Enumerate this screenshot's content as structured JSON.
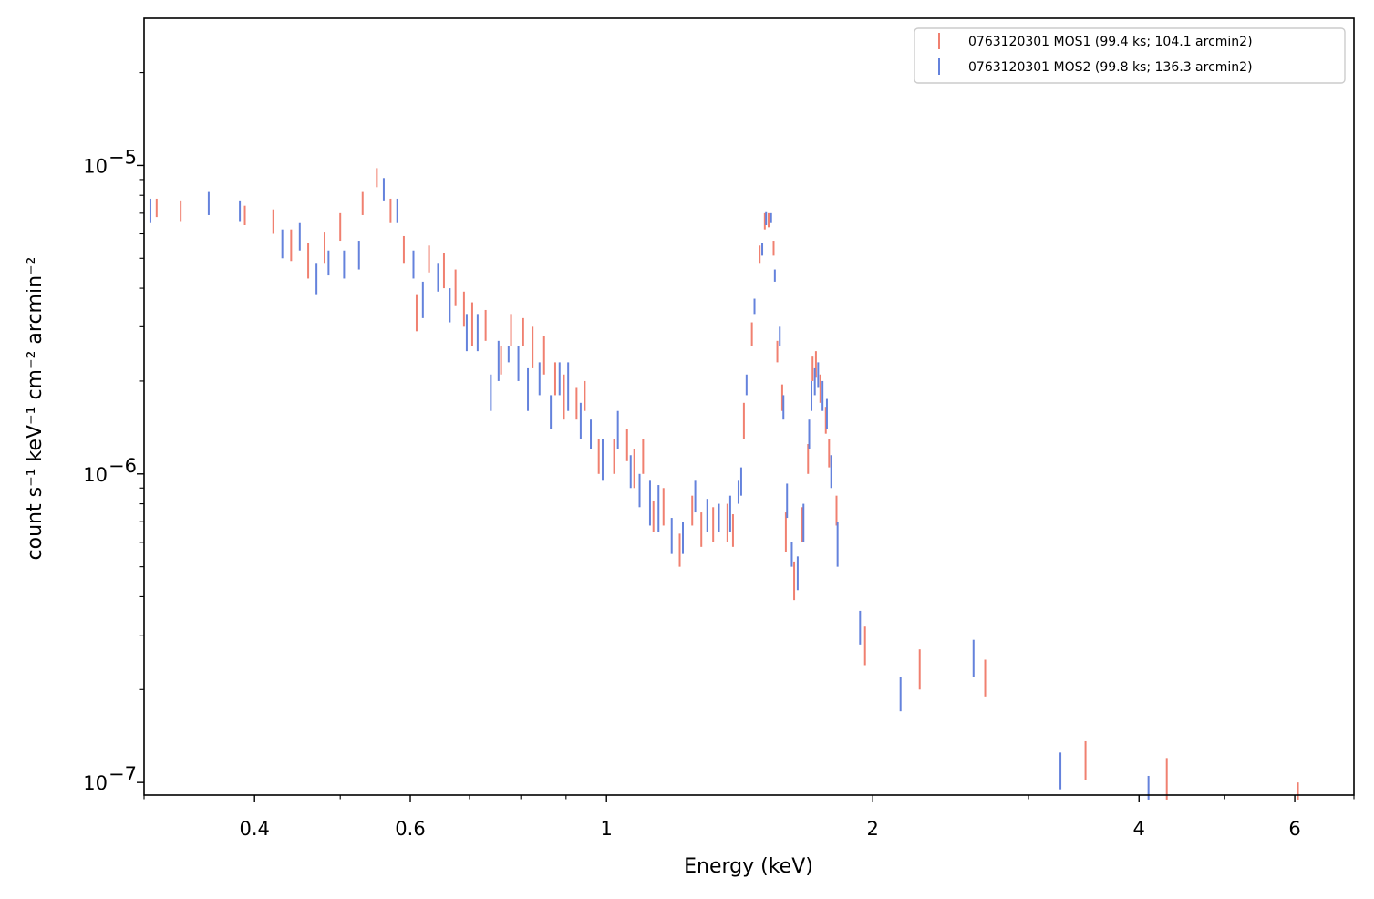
{
  "chart_data": {
    "type": "scatter",
    "title": "",
    "xlabel": "Energy (keV)",
    "ylabel": "count s⁻¹ keV⁻¹ cm⁻² arcmin⁻²",
    "x_scale": "log",
    "y_scale": "log",
    "xlim": [
      0.3,
      7.0
    ],
    "ylim": [
      9.1e-08,
      3e-05
    ],
    "x_ticks": [
      {
        "value": 0.4,
        "label": "0.4"
      },
      {
        "value": 0.6,
        "label": "0.6"
      },
      {
        "value": 1,
        "label": "1"
      },
      {
        "value": 2,
        "label": "2"
      },
      {
        "value": 4,
        "label": "4"
      },
      {
        "value": 6,
        "label": "6"
      }
    ],
    "y_ticks": [
      {
        "value": 1e-05,
        "base": "10",
        "exp": "−5"
      },
      {
        "value": 1e-06,
        "base": "10",
        "exp": "−6"
      },
      {
        "value": 1e-07,
        "base": "10",
        "exp": "−7"
      }
    ],
    "legend_position": "top-right",
    "grid": false,
    "series": [
      {
        "name": "0763120301 MOS1 (99.4 ks; 104.1 arcmin2)",
        "color": "#f08070",
        "points": [
          [
            0.31,
            6.8e-06,
            7.8e-06
          ],
          [
            0.33,
            6.6e-06,
            7.7e-06
          ],
          [
            0.39,
            6.4e-06,
            7.4e-06
          ],
          [
            0.42,
            6e-06,
            7.2e-06
          ],
          [
            0.44,
            4.9e-06,
            6.2e-06
          ],
          [
            0.46,
            4.3e-06,
            5.6e-06
          ],
          [
            0.48,
            4.8e-06,
            6.1e-06
          ],
          [
            0.5,
            5.7e-06,
            7e-06
          ],
          [
            0.53,
            6.9e-06,
            8.2e-06
          ],
          [
            0.55,
            8.5e-06,
            9.8e-06
          ],
          [
            0.57,
            6.5e-06,
            7.8e-06
          ],
          [
            0.59,
            4.8e-06,
            5.9e-06
          ],
          [
            0.61,
            2.9e-06,
            3.8e-06
          ],
          [
            0.63,
            4.5e-06,
            5.5e-06
          ],
          [
            0.655,
            4e-06,
            5.2e-06
          ],
          [
            0.675,
            3.5e-06,
            4.6e-06
          ],
          [
            0.69,
            3e-06,
            3.9e-06
          ],
          [
            0.705,
            2.6e-06,
            3.6e-06
          ],
          [
            0.73,
            2.7e-06,
            3.4e-06
          ],
          [
            0.76,
            2.1e-06,
            2.6e-06
          ],
          [
            0.78,
            2.6e-06,
            3.3e-06
          ],
          [
            0.805,
            2.6e-06,
            3.2e-06
          ],
          [
            0.825,
            2.2e-06,
            3e-06
          ],
          [
            0.85,
            2.1e-06,
            2.8e-06
          ],
          [
            0.875,
            1.8e-06,
            2.3e-06
          ],
          [
            0.895,
            1.5e-06,
            2.1e-06
          ],
          [
            0.925,
            1.5e-06,
            1.9e-06
          ],
          [
            0.945,
            1.6e-06,
            2e-06
          ],
          [
            0.98,
            1e-06,
            1.3e-06
          ],
          [
            1.02,
            1e-06,
            1.3e-06
          ],
          [
            1.055,
            1.1e-06,
            1.4e-06
          ],
          [
            1.075,
            9e-07,
            1.2e-06
          ],
          [
            1.1,
            1e-06,
            1.3e-06
          ],
          [
            1.13,
            6.5e-07,
            8.2e-07
          ],
          [
            1.16,
            6.8e-07,
            9e-07
          ],
          [
            1.21,
            5e-07,
            6.4e-07
          ],
          [
            1.25,
            6.8e-07,
            8.5e-07
          ],
          [
            1.28,
            5.8e-07,
            7.5e-07
          ],
          [
            1.32,
            6e-07,
            7.8e-07
          ],
          [
            1.37,
            6e-07,
            8e-07
          ],
          [
            1.39,
            5.8e-07,
            7.4e-07
          ],
          [
            1.43,
            1.3e-06,
            1.7e-06
          ],
          [
            1.46,
            2.6e-06,
            3.1e-06
          ],
          [
            1.49,
            4.8e-06,
            5.5e-06
          ],
          [
            1.51,
            6.2e-06,
            7e-06
          ],
          [
            1.525,
            6.3e-06,
            7e-06
          ],
          [
            1.545,
            5.1e-06,
            5.7e-06
          ],
          [
            1.56,
            2.3e-06,
            2.7e-06
          ],
          [
            1.58,
            1.6e-06,
            1.95e-06
          ],
          [
            1.595,
            5.6e-07,
            7.5e-07
          ],
          [
            1.63,
            3.9e-07,
            5.2e-07
          ],
          [
            1.665,
            6e-07,
            7.8e-07
          ],
          [
            1.69,
            1e-06,
            1.25e-06
          ],
          [
            1.71,
            2e-06,
            2.4e-06
          ],
          [
            1.725,
            2.05e-06,
            2.5e-06
          ],
          [
            1.745,
            1.7e-06,
            2.1e-06
          ],
          [
            1.77,
            1.35e-06,
            1.65e-06
          ],
          [
            1.785,
            1.05e-06,
            1.3e-06
          ],
          [
            1.82,
            6.8e-07,
            8.5e-07
          ],
          [
            1.96,
            2.4e-07,
            3.2e-07
          ],
          [
            2.26,
            2e-07,
            2.7e-07
          ],
          [
            2.68,
            1.9e-07,
            2.5e-07
          ],
          [
            3.48,
            1.02e-07,
            1.36e-07
          ],
          [
            4.3,
            8.8e-08,
            1.2e-07
          ],
          [
            6.05,
            8.8e-08,
            1e-07
          ]
        ]
      },
      {
        "name": "0763120301 MOS2 (99.8 ks; 136.3 arcmin2)",
        "color": "#6482dc",
        "points": [
          [
            0.305,
            6.5e-06,
            7.8e-06
          ],
          [
            0.355,
            6.9e-06,
            8.2e-06
          ],
          [
            0.385,
            6.6e-06,
            7.7e-06
          ],
          [
            0.43,
            5e-06,
            6.2e-06
          ],
          [
            0.45,
            5.3e-06,
            6.5e-06
          ],
          [
            0.47,
            3.8e-06,
            4.8e-06
          ],
          [
            0.485,
            4.4e-06,
            5.3e-06
          ],
          [
            0.505,
            4.3e-06,
            5.3e-06
          ],
          [
            0.525,
            4.6e-06,
            5.7e-06
          ],
          [
            0.56,
            7.7e-06,
            9.1e-06
          ],
          [
            0.58,
            6.5e-06,
            7.8e-06
          ],
          [
            0.605,
            4.3e-06,
            5.3e-06
          ],
          [
            0.62,
            3.2e-06,
            4.2e-06
          ],
          [
            0.645,
            3.9e-06,
            4.8e-06
          ],
          [
            0.665,
            3.1e-06,
            4e-06
          ],
          [
            0.695,
            2.5e-06,
            3.3e-06
          ],
          [
            0.715,
            2.5e-06,
            3.3e-06
          ],
          [
            0.74,
            1.6e-06,
            2.1e-06
          ],
          [
            0.755,
            2e-06,
            2.7e-06
          ],
          [
            0.775,
            2.3e-06,
            2.6e-06
          ],
          [
            0.795,
            2e-06,
            2.6e-06
          ],
          [
            0.815,
            1.6e-06,
            2.2e-06
          ],
          [
            0.84,
            1.8e-06,
            2.3e-06
          ],
          [
            0.865,
            1.4e-06,
            1.8e-06
          ],
          [
            0.885,
            1.8e-06,
            2.3e-06
          ],
          [
            0.905,
            1.6e-06,
            2.3e-06
          ],
          [
            0.935,
            1.3e-06,
            1.7e-06
          ],
          [
            0.96,
            1.2e-06,
            1.5e-06
          ],
          [
            0.99,
            9.5e-07,
            1.3e-06
          ],
          [
            1.03,
            1.2e-06,
            1.6e-06
          ],
          [
            1.065,
            9e-07,
            1.15e-06
          ],
          [
            1.09,
            7.8e-07,
            1e-06
          ],
          [
            1.12,
            6.8e-07,
            9.5e-07
          ],
          [
            1.145,
            6.5e-07,
            9.2e-07
          ],
          [
            1.185,
            5.5e-07,
            7.2e-07
          ],
          [
            1.22,
            5.5e-07,
            7e-07
          ],
          [
            1.26,
            7.5e-07,
            9.5e-07
          ],
          [
            1.3,
            6.5e-07,
            8.3e-07
          ],
          [
            1.34,
            6.5e-07,
            8e-07
          ],
          [
            1.38,
            6.5e-07,
            8.5e-07
          ],
          [
            1.41,
            8e-07,
            9.5e-07
          ],
          [
            1.42,
            8.5e-07,
            1.05e-06
          ],
          [
            1.44,
            1.8e-06,
            2.1e-06
          ],
          [
            1.47,
            3.3e-06,
            3.7e-06
          ],
          [
            1.5,
            5.1e-06,
            5.6e-06
          ],
          [
            1.515,
            6.4e-06,
            7.1e-06
          ],
          [
            1.535,
            6.5e-06,
            7e-06
          ],
          [
            1.55,
            4.2e-06,
            4.6e-06
          ],
          [
            1.57,
            2.6e-06,
            3e-06
          ],
          [
            1.585,
            1.5e-06,
            1.8e-06
          ],
          [
            1.6,
            7.2e-07,
            9.3e-07
          ],
          [
            1.62,
            5e-07,
            6e-07
          ],
          [
            1.645,
            4.2e-07,
            5.4e-07
          ],
          [
            1.67,
            6e-07,
            8e-07
          ],
          [
            1.695,
            1.2e-06,
            1.5e-06
          ],
          [
            1.705,
            1.6e-06,
            2e-06
          ],
          [
            1.72,
            1.8e-06,
            2.2e-06
          ],
          [
            1.735,
            1.9e-06,
            2.3e-06
          ],
          [
            1.755,
            1.6e-06,
            2e-06
          ],
          [
            1.775,
            1.4e-06,
            1.75e-06
          ],
          [
            1.795,
            9e-07,
            1.15e-06
          ],
          [
            1.825,
            5e-07,
            7e-07
          ],
          [
            1.935,
            2.8e-07,
            3.6e-07
          ],
          [
            2.15,
            1.7e-07,
            2.2e-07
          ],
          [
            2.6,
            2.2e-07,
            2.9e-07
          ],
          [
            3.26,
            9.5e-08,
            1.25e-07
          ],
          [
            4.1,
            8.8e-08,
            1.05e-07
          ]
        ]
      }
    ]
  }
}
